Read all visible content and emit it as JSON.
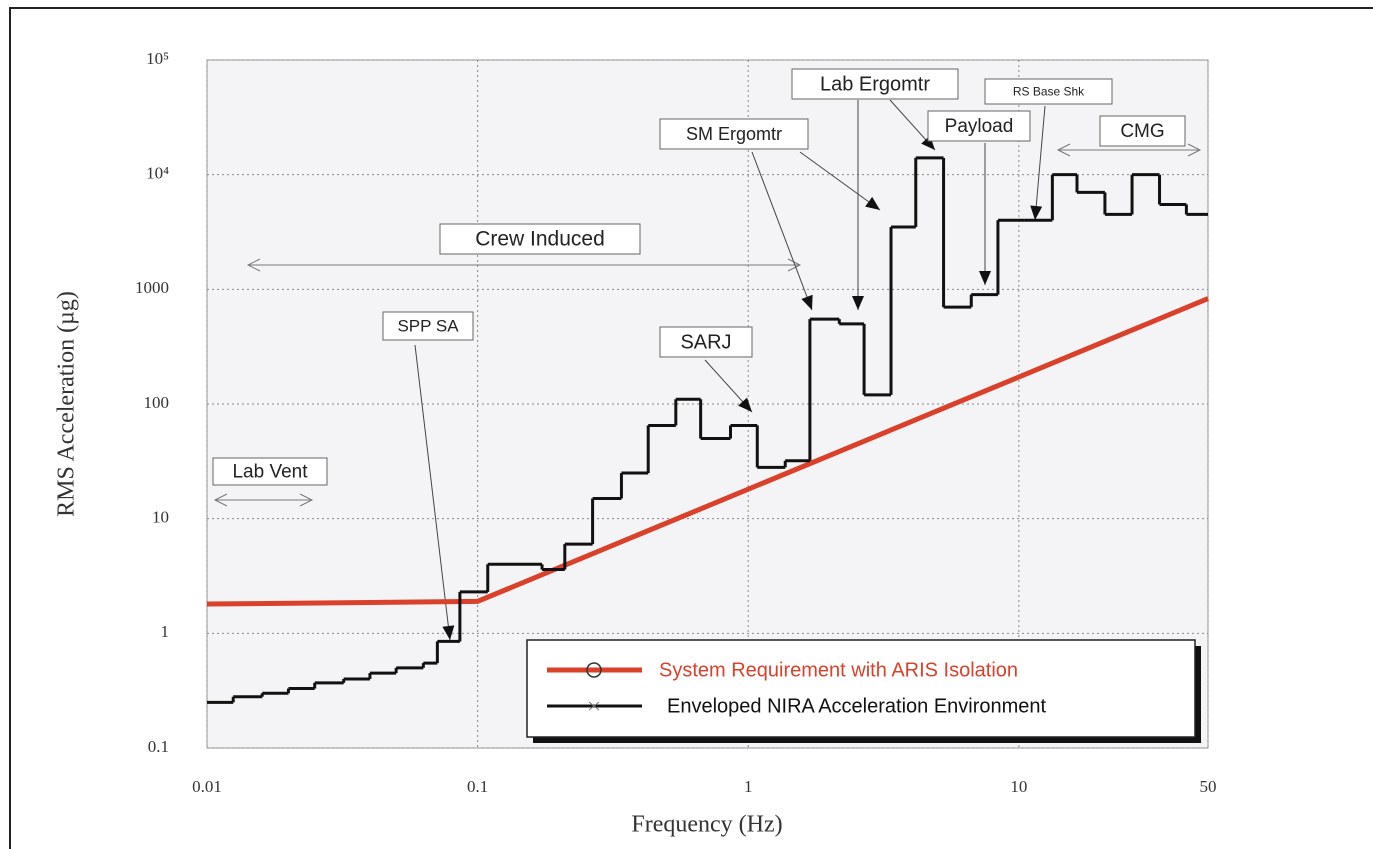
{
  "chart_data": {
    "type": "line",
    "x_label": "Frequency (Hz)",
    "y_label": "RMS Acceleration (µg)",
    "log_x": true,
    "log_y": true,
    "grid": true,
    "xlim": [
      0.01,
      50
    ],
    "ylim": [
      0.1,
      100000
    ],
    "xticks": [
      0.01,
      0.1,
      1,
      10,
      50
    ],
    "yticks": [
      0.1,
      1,
      10,
      100,
      1000,
      {
        "value": 10000,
        "label": "10⁴"
      },
      {
        "value": 100000,
        "label": "10⁵"
      }
    ],
    "legend": "lower-right",
    "series": [
      {
        "name": "System Requirement with ARIS Isolation",
        "color": "#d9412b",
        "marker": "circle",
        "x": [
          0.01,
          0.1,
          50
        ],
        "values": [
          1.8,
          1.9,
          830
        ]
      },
      {
        "name": "Enveloped NIRA Acceleration Environment",
        "color": "#111111",
        "marker": "x",
        "step": "post",
        "x": [
          0.01,
          0.0125,
          0.016,
          0.02,
          0.025,
          0.032,
          0.04,
          0.05,
          0.063,
          0.071,
          0.086,
          0.109,
          0.173,
          0.21,
          0.266,
          0.34,
          0.427,
          0.54,
          0.667,
          0.86,
          1.08,
          1.37,
          1.69,
          2.17,
          2.68,
          3.37,
          4.16,
          5.27,
          6.67,
          8.37,
          10.5,
          13.3,
          16.4,
          20.8,
          26.2,
          33.1,
          41.6,
          50
        ],
        "values": [
          0.25,
          0.28,
          0.3,
          0.33,
          0.37,
          0.4,
          0.45,
          0.5,
          0.55,
          0.85,
          2.3,
          4,
          3.6,
          6,
          15,
          25,
          65,
          110,
          50,
          65,
          28,
          32,
          550,
          500,
          120,
          3500,
          14000,
          700,
          900,
          4000,
          4000,
          10000,
          7000,
          4500,
          10000,
          5500,
          4500,
          4500
        ]
      }
    ],
    "annotations": [
      "Lab Vent",
      "SPP SA",
      "Crew Induced",
      "SARJ",
      "SM Ergomtr",
      "Lab Ergomtr",
      "RS Base Shk",
      "Payload",
      "CMG"
    ]
  }
}
